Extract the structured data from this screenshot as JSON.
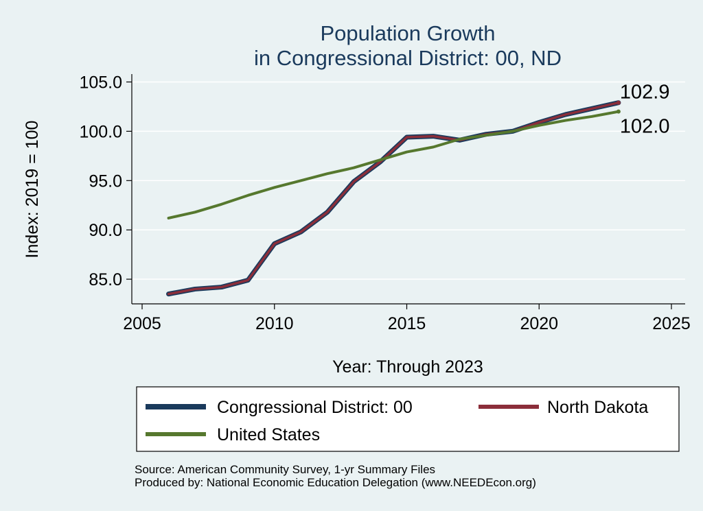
{
  "chart_data": {
    "type": "line",
    "title": [
      "Population Growth",
      "in Congressional District: 00, ND"
    ],
    "xlabel": "Year: Through 2023",
    "ylabel": "Index: 2019 = 100",
    "xlim": [
      2005,
      2025
    ],
    "ylim": [
      82.5,
      105.8
    ],
    "xticks": [
      2005,
      2010,
      2015,
      2020,
      2025
    ],
    "yticks": [
      85,
      90,
      95,
      100,
      105
    ],
    "ytick_labels": [
      "85.0",
      "90.0",
      "95.0",
      "100.0",
      "105.0"
    ],
    "grid": true,
    "x": [
      2006,
      2007,
      2008,
      2009,
      2010,
      2011,
      2012,
      2013,
      2014,
      2015,
      2016,
      2017,
      2018,
      2019,
      2020,
      2021,
      2022,
      2023
    ],
    "series": [
      {
        "name": "Congressional District: 00",
        "color": "#1a3a5c",
        "values": [
          83.5,
          84.0,
          84.2,
          84.9,
          88.6,
          89.8,
          91.8,
          94.9,
          96.9,
          99.4,
          99.5,
          99.1,
          99.7,
          100.0,
          100.9,
          101.7,
          102.3,
          102.9
        ]
      },
      {
        "name": "North Dakota",
        "color": "#8b2e3a",
        "values": [
          83.5,
          84.0,
          84.2,
          84.9,
          88.6,
          89.8,
          91.8,
          94.9,
          96.9,
          99.4,
          99.5,
          99.1,
          99.7,
          100.0,
          100.9,
          101.7,
          102.3,
          102.9
        ]
      },
      {
        "name": "United States",
        "color": "#56782e",
        "values": [
          91.2,
          91.8,
          92.6,
          93.5,
          94.3,
          95.0,
          95.7,
          96.3,
          97.1,
          97.9,
          98.4,
          99.2,
          99.6,
          100.0,
          100.6,
          101.1,
          101.5,
          102.0
        ]
      }
    ],
    "end_labels": [
      "102.9",
      "102.0"
    ],
    "legend": {
      "placement": "bottom",
      "items": [
        "Congressional District: 00",
        "North Dakota",
        "United States"
      ]
    },
    "notes": [
      "Source: American Community Survey, 1-yr Summary Files",
      "Produced by: National Economic Education Delegation (www.NEEDEcon.org)"
    ]
  }
}
